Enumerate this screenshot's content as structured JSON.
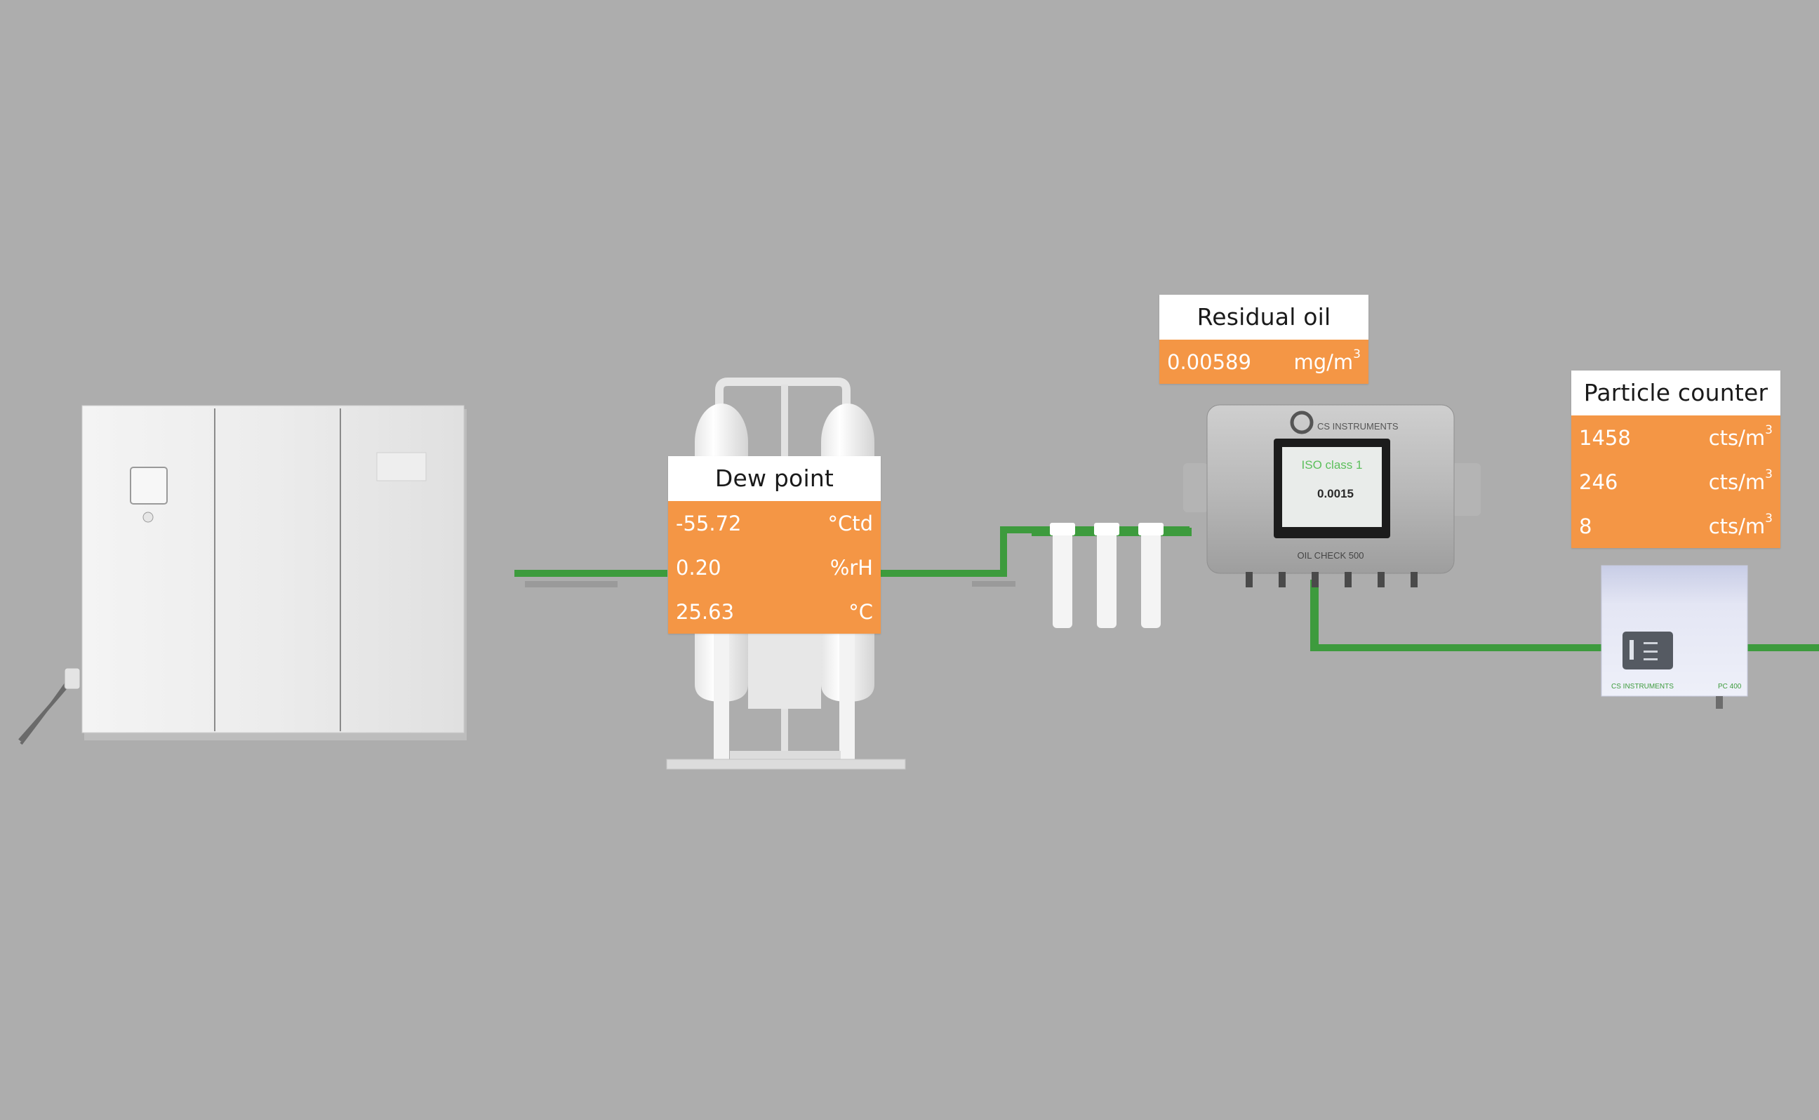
{
  "colors": {
    "background": "#adadad",
    "panel_header": "#ffffff",
    "panel_body": "#f49645",
    "pipe": "#3d9b3d"
  },
  "dew_point": {
    "title": "Dew point",
    "readings": [
      {
        "value": "-55.72",
        "unit": "°Ctd"
      },
      {
        "value": "0.20",
        "unit": "%rH"
      },
      {
        "value": "25.63",
        "unit": "°C"
      }
    ]
  },
  "residual_oil": {
    "title": "Residual oil",
    "readings": [
      {
        "value": "0.00589",
        "unit": "mg/m",
        "unit_sup": "3"
      }
    ]
  },
  "particle_counter": {
    "title": "Particle counter",
    "readings": [
      {
        "value": "1458",
        "unit": "cts/m",
        "unit_sup": "3"
      },
      {
        "value": "246",
        "unit": "cts/m",
        "unit_sup": "3"
      },
      {
        "value": "8",
        "unit": "cts/m",
        "unit_sup": "3"
      }
    ]
  },
  "oil_check_device": {
    "brand": "CS INSTRUMENTS",
    "model": "OIL CHECK 500",
    "screen_title": "ISO class 1",
    "screen_value": "0.0015"
  },
  "particle_device": {
    "brand": "CS INSTRUMENTS",
    "model": "PC 400"
  },
  "icons": [
    "compressor-icon",
    "dryer-icon",
    "filter-icon",
    "oil-check-device-icon",
    "particle-counter-device-icon"
  ]
}
